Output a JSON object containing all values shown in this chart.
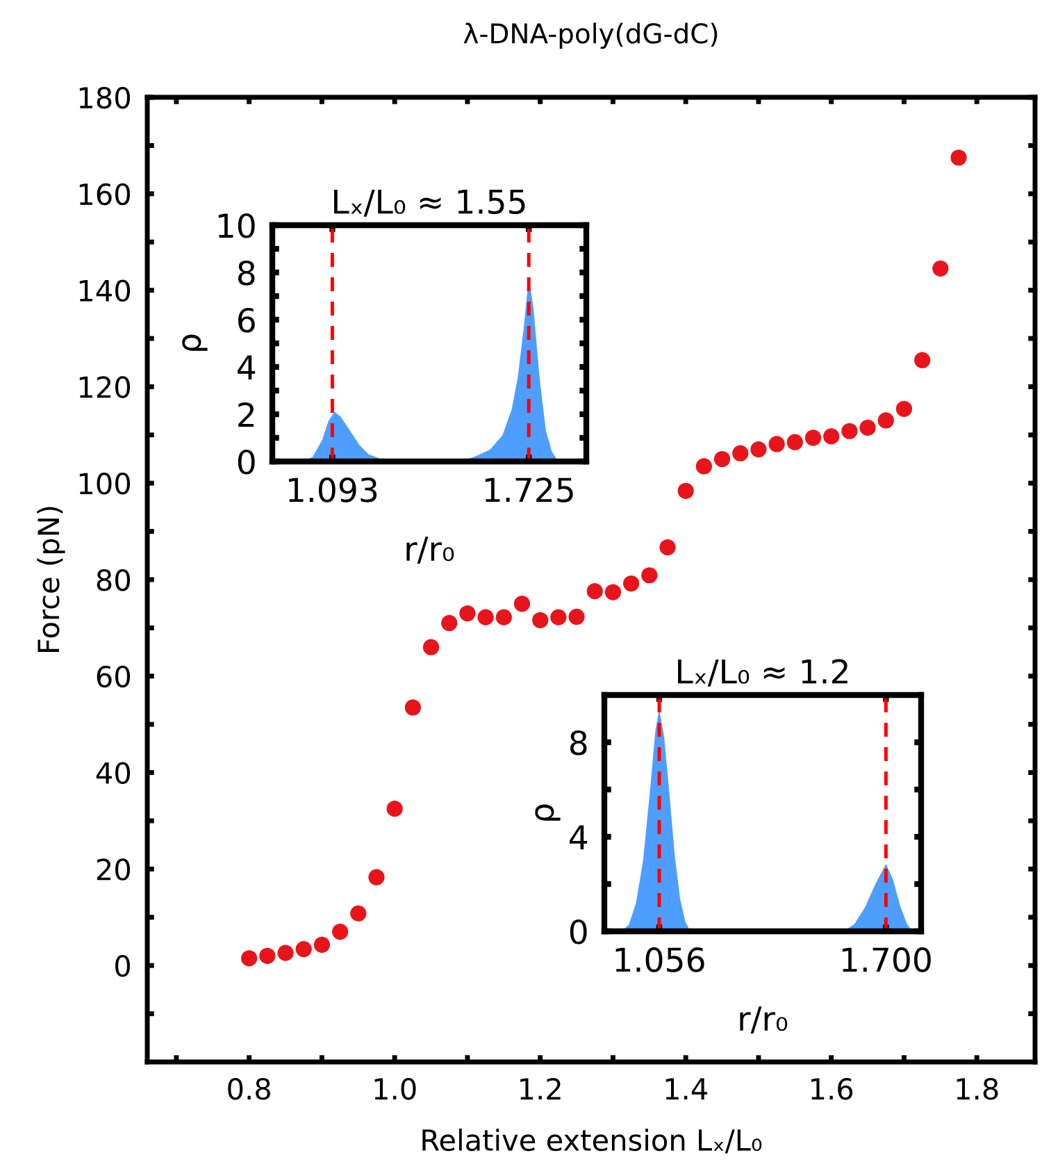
{
  "chart_data": [
    {
      "type": "scatter",
      "title": "λ-DNA-poly(dG-dC)",
      "xlabel": "Relative extension Lₓ/L₀",
      "ylabel": "Force (pN)",
      "marker": "circle",
      "xlim": [
        0.66,
        1.88
      ],
      "xticks": [
        {
          "value": 0.7,
          "label": null
        },
        0.8,
        {
          "value": 0.9,
          "label": null
        },
        {
          "value": 1.0,
          "label": "1.0"
        },
        {
          "value": 1.1,
          "label": null
        },
        1.2,
        {
          "value": 1.3,
          "label": null
        },
        1.4,
        {
          "value": 1.5,
          "label": null
        },
        1.6,
        {
          "value": 1.7,
          "label": null
        },
        1.8
      ],
      "ylim": [
        -20,
        180
      ],
      "yticks": [
        {
          "value": -10,
          "label": null
        },
        0,
        {
          "value": 10,
          "label": null
        },
        20,
        {
          "value": 30,
          "label": null
        },
        40,
        {
          "value": 50,
          "label": null
        },
        60,
        {
          "value": 70,
          "label": null
        },
        80,
        {
          "value": 90,
          "label": null
        },
        100,
        {
          "value": 110,
          "label": null
        },
        120,
        {
          "value": 130,
          "label": null
        },
        140,
        {
          "value": 150,
          "label": null
        },
        160,
        {
          "value": 170,
          "label": null
        },
        180
      ],
      "x": [
        0.8,
        0.825,
        0.85,
        0.875,
        0.9,
        0.925,
        0.95,
        0.975,
        1.0,
        1.025,
        1.05,
        1.075,
        1.1,
        1.125,
        1.15,
        1.175,
        1.2,
        1.225,
        1.25,
        1.275,
        1.3,
        1.325,
        1.35,
        1.375,
        1.4,
        1.425,
        1.45,
        1.475,
        1.5,
        1.525,
        1.55,
        1.575,
        1.6,
        1.625,
        1.65,
        1.675,
        1.7,
        1.725,
        1.75,
        1.775
      ],
      "series": [
        {
          "color": "#e8141b",
          "values": [
            1.5,
            2.0,
            2.6,
            3.4,
            4.3,
            7.0,
            10.8,
            18.3,
            32.5,
            53.5,
            66,
            71,
            73,
            72.2,
            72.2,
            75,
            71.6,
            72.2,
            72.3,
            77.6,
            77.4,
            79.2,
            80.9,
            86.7,
            98.4,
            103.5,
            105,
            106.2,
            107,
            108.1,
            108.5,
            109.4,
            109.7,
            110.8,
            111.5,
            113,
            115.4,
            125.5,
            144.5,
            167.5
          ]
        }
      ]
    },
    {
      "type": "area",
      "title": "Lₓ/L₀ ≈ 1.55",
      "xlabel": "r/r₀",
      "ylabel": "ρ",
      "xlim": [
        0.9,
        1.91
      ],
      "xticks": [
        1.093,
        1.725
      ],
      "ylim": [
        0,
        10
      ],
      "yticks": [
        0,
        {
          "value": 1,
          "label": null
        },
        2,
        {
          "value": 3,
          "label": null
        },
        4,
        {
          "value": 5,
          "label": null
        },
        6,
        {
          "value": 7,
          "label": null
        },
        8,
        {
          "value": 9,
          "label": null
        },
        10
      ],
      "series": [
        {
          "color": "#4d9eff",
          "x": [
            0.95,
            1.0,
            1.03,
            1.06,
            1.08,
            1.1,
            1.12,
            1.15,
            1.18,
            1.21,
            1.25,
            1.3,
            1.5,
            1.55,
            1.6,
            1.64,
            1.67,
            1.69,
            1.71,
            1.725,
            1.74,
            1.76,
            1.78,
            1.8,
            1.82,
            1.88
          ],
          "values": [
            0,
            0,
            0.2,
            0.9,
            1.7,
            2.1,
            1.9,
            1.3,
            0.7,
            0.3,
            0.1,
            0,
            0,
            0.2,
            0.5,
            1.1,
            2.2,
            3.6,
            5.8,
            7.8,
            6.5,
            3.5,
            1.3,
            0.4,
            0,
            0
          ]
        }
      ],
      "ref_lines": [
        {
          "axis": "x",
          "value": 1.093,
          "color": "#ff0000",
          "line_style": "dashed"
        },
        {
          "axis": "x",
          "value": 1.725,
          "color": "#ff0000",
          "line_style": "dashed"
        }
      ]
    },
    {
      "type": "area",
      "title": "Lₓ/L₀ ≈ 1.2",
      "xlabel": "r/r₀",
      "ylabel": "ρ",
      "xlim": [
        0.9,
        1.8
      ],
      "xticks": [
        1.056,
        {
          "value": 1.7,
          "label": "1.700"
        }
      ],
      "ylim": [
        0,
        10
      ],
      "yticks": [
        0,
        {
          "value": 2,
          "label": null
        },
        4,
        {
          "value": 6,
          "label": null
        },
        8
      ],
      "series": [
        {
          "color": "#4d9eff",
          "x": [
            0.95,
            0.97,
            0.99,
            1.01,
            1.03,
            1.045,
            1.056,
            1.07,
            1.085,
            1.1,
            1.115,
            1.13,
            1.145,
            1.58,
            1.61,
            1.64,
            1.67,
            1.7,
            1.72,
            1.74,
            1.76,
            1.775
          ],
          "values": [
            0,
            0.3,
            1.2,
            3.0,
            6.0,
            8.5,
            9.4,
            8.2,
            5.8,
            3.2,
            1.4,
            0.4,
            0,
            0,
            0.3,
            1.0,
            2.0,
            2.85,
            2.2,
            1.1,
            0.3,
            0
          ]
        }
      ],
      "ref_lines": [
        {
          "axis": "x",
          "value": 1.056,
          "color": "#ff0000",
          "line_style": "dashed"
        },
        {
          "axis": "x",
          "value": 1.7,
          "color": "#ff0000",
          "line_style": "dashed"
        }
      ]
    }
  ]
}
